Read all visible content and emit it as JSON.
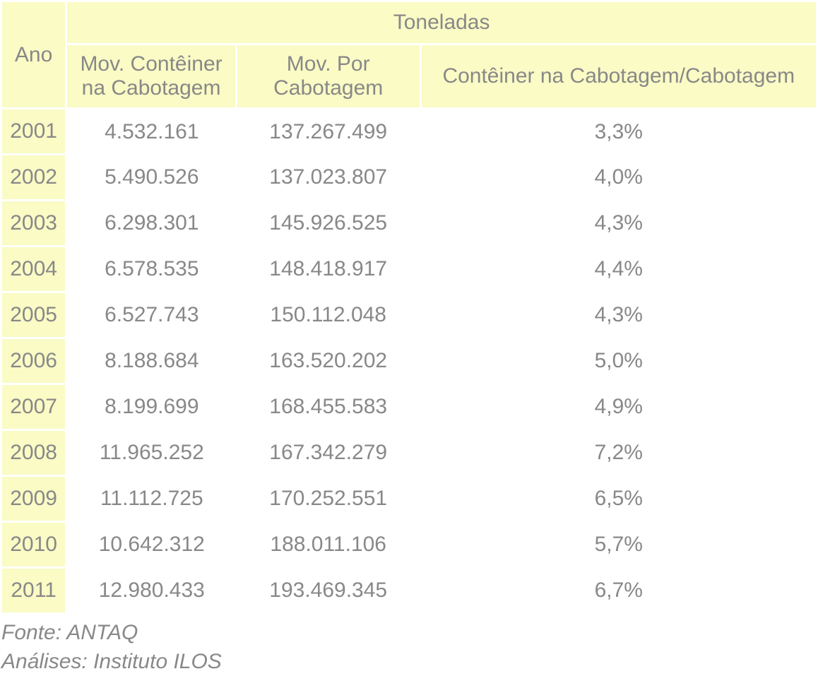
{
  "table": {
    "type": "table",
    "background_color": "#ffffff",
    "header_bg_color": "#fafbc5",
    "year_bg_color": "#fafbc5",
    "text_color": "#888888",
    "border_color": "#ffffff",
    "border_width": 3,
    "font_family": "Arial",
    "font_size_pt": 22,
    "columns": {
      "year_header": "Ano",
      "super_header": "Toneladas",
      "col1": "Mov. Contêiner na Cabotagem",
      "col2": "Mov. Por Cabotagem",
      "col3": "Contêiner na Cabotagem/Cabotagem",
      "widths": [
        92,
        240,
        260,
        560
      ],
      "alignment": [
        "center",
        "center",
        "center",
        "center"
      ]
    },
    "rows": [
      {
        "year": "2001",
        "c1": "4.532.161",
        "c2": "137.267.499",
        "c3": "3,3%"
      },
      {
        "year": "2002",
        "c1": "5.490.526",
        "c2": "137.023.807",
        "c3": "4,0%"
      },
      {
        "year": "2003",
        "c1": "6.298.301",
        "c2": "145.926.525",
        "c3": "4,3%"
      },
      {
        "year": "2004",
        "c1": "6.578.535",
        "c2": "148.418.917",
        "c3": "4,4%"
      },
      {
        "year": "2005",
        "c1": "6.527.743",
        "c2": "150.112.048",
        "c3": "4,3%"
      },
      {
        "year": "2006",
        "c1": "8.188.684",
        "c2": "163.520.202",
        "c3": "5,0%"
      },
      {
        "year": "2007",
        "c1": "8.199.699",
        "c2": "168.455.583",
        "c3": "4,9%"
      },
      {
        "year": "2008",
        "c1": "11.965.252",
        "c2": "167.342.279",
        "c3": "7,2%"
      },
      {
        "year": "2009",
        "c1": "11.112.725",
        "c2": "170.252.551",
        "c3": "6,5%"
      },
      {
        "year": "2010",
        "c1": "10.642.312",
        "c2": "188.011.106",
        "c3": "5,7%"
      },
      {
        "year": "2011",
        "c1": "12.980.433",
        "c2": "193.469.345",
        "c3": "6,7%"
      }
    ]
  },
  "footer": {
    "source_line": "Fonte: ANTAQ",
    "analysis_line": "Análises: Instituto ILOS",
    "font_style": "italic",
    "text_color": "#888888"
  }
}
